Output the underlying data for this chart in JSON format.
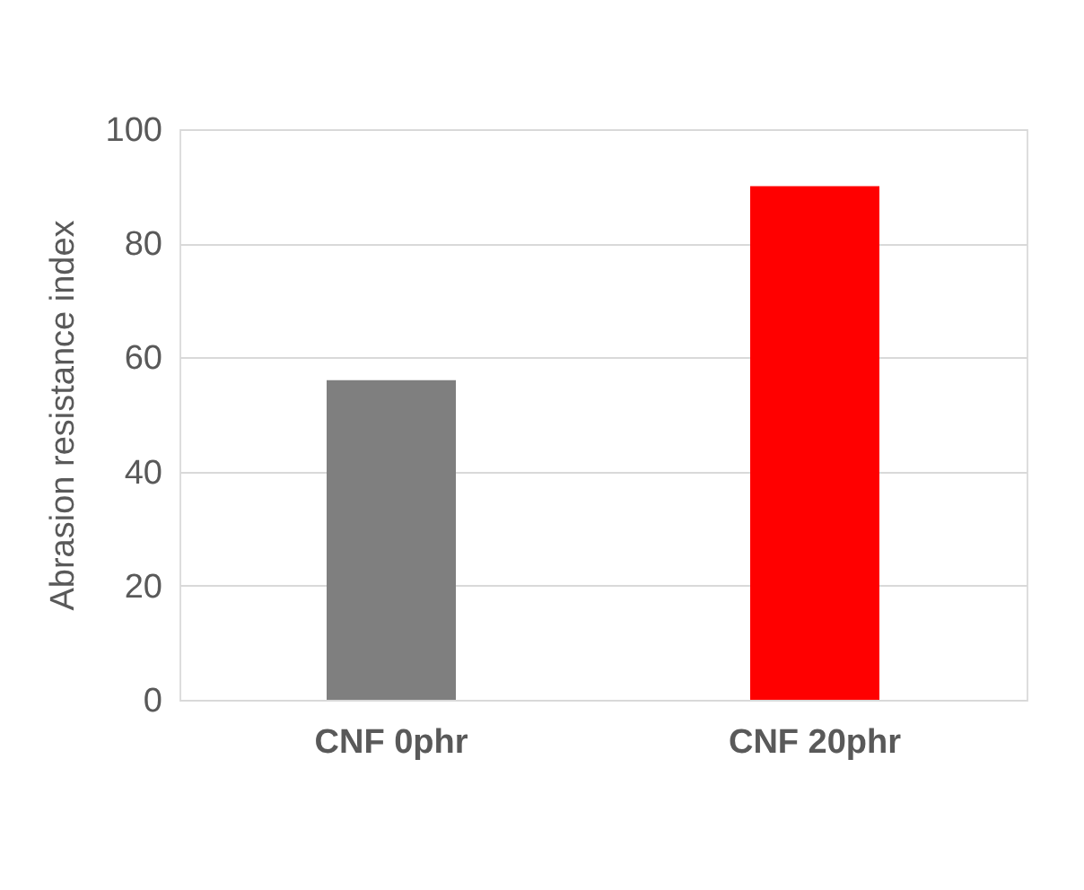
{
  "chart_data": {
    "type": "bar",
    "ylabel": "Abrasion resistance index",
    "categories": [
      "CNF 0phr",
      "CNF 20phr"
    ],
    "values": [
      56,
      90
    ],
    "colors": [
      "#7f7f7f",
      "#ff0000"
    ],
    "ylim": [
      0,
      100
    ],
    "yticks": [
      0,
      20,
      40,
      60,
      80,
      100
    ],
    "grid": "y"
  }
}
